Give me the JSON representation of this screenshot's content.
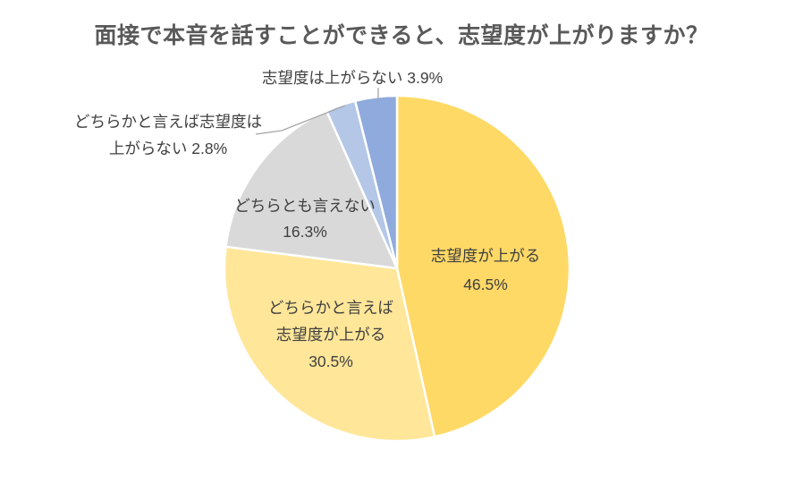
{
  "title": "面接で本音を話すことができると、志望度が上がりますか？",
  "chart_data": {
    "type": "pie",
    "title": "面接で本音を話すことができると、志望度が上がりますか？",
    "direction": "clockwise",
    "start_angle_deg": 0,
    "border_color": "#FFFFFF",
    "series": [
      {
        "key": "agree",
        "label": "志望度が上がる",
        "value": 46.5,
        "color": "#FFD966"
      },
      {
        "key": "somewhat-agree",
        "label": "どちらかと言えば志望度が上がる",
        "value": 30.5,
        "color": "#FFE699"
      },
      {
        "key": "neutral",
        "label": "どちらとも言えない",
        "value": 16.3,
        "color": "#D9D9D9"
      },
      {
        "key": "somewhat-disagree",
        "label": "どちらかと言えば志望度は上がらない",
        "value": 2.8,
        "color": "#B4C7E7"
      },
      {
        "key": "disagree",
        "label": "志望度は上がらない",
        "value": 3.9,
        "color": "#8FAADC"
      }
    ]
  },
  "labels": {
    "agree": {
      "line1": "志望度が上がる",
      "line2": "46.5%"
    },
    "somewhat_agree": {
      "line1": "どちらかと言えば",
      "line2": "志望度が上がる",
      "line3": "30.5%"
    },
    "neutral": {
      "line1": "どちらとも言えない",
      "line2": "16.3%"
    },
    "somewhat_disagree": {
      "line1": "どちらかと言えば志望度は",
      "line2": "上がらない 2.8%"
    },
    "disagree": {
      "text": "志望度は上がらない 3.9%"
    }
  },
  "colors": {
    "title_text": "#595959",
    "label_text": "#404040",
    "leader_line": "#A6A6A6"
  }
}
